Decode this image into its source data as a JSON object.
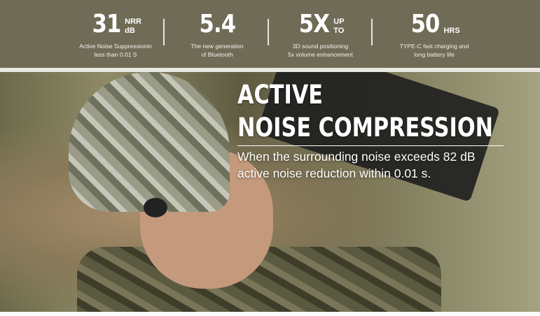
{
  "stats": [
    {
      "value": "31",
      "unit_top": "NRR",
      "unit_bottom": "dB",
      "desc1": "Active Noise Suppressionin",
      "desc2": "less than 0.01 S"
    },
    {
      "value": "5.4",
      "unit_top": "",
      "unit_bottom": "",
      "desc1": "The new generation",
      "desc2": "of Bluetooth"
    },
    {
      "value": "5X",
      "unit_top": "UP",
      "unit_bottom": "TO",
      "desc1": "3D sound positioning",
      "desc2": "5x volume enhancement"
    },
    {
      "value": "50",
      "unit_top": "",
      "unit_bottom": "HRS",
      "desc1": "TYPE-C fast charging and",
      "desc2": "long battery life"
    }
  ],
  "headline": {
    "line1": "ACTIVE",
    "line2": "NOISE COMPRESSION",
    "sub1": "When the surrounding noise exceeds 82 dB",
    "sub2": "active noise reduction within 0.01 s."
  },
  "colors": {
    "banner": "#6f6b56",
    "text": "#ffffff"
  }
}
